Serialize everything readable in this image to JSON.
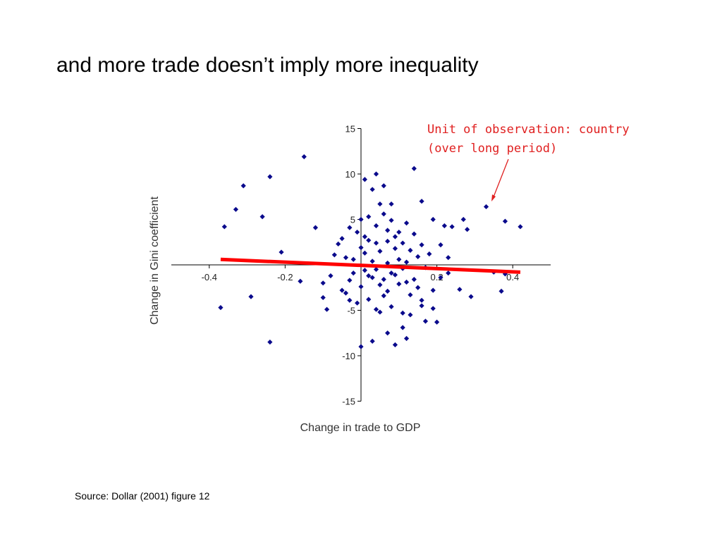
{
  "slide": {
    "title": "and more trade doesn’t imply more inequality",
    "annotation_line1": "Unit of observation: country",
    "annotation_line2": "(over long period)",
    "source": "Source: Dollar (2001) figure 12"
  },
  "colors": {
    "points": "#0a0a8c",
    "fit_line": "#ff0000",
    "annotation": "#e02020",
    "axis": "#000000"
  },
  "chart_data": {
    "type": "scatter",
    "title": "",
    "xlabel": "Change in trade to GDP",
    "ylabel": "Change in Gini coefficient",
    "xlim": [
      -0.5,
      0.5
    ],
    "ylim": [
      -15,
      15
    ],
    "x_ticks": [
      -0.4,
      -0.2,
      0.2,
      0.4
    ],
    "y_ticks": [
      15,
      10,
      5,
      -5,
      -10,
      -15
    ],
    "x_tick_labels": [
      "-0.4",
      "-0.2",
      "0.2",
      "0.4"
    ],
    "y_tick_labels": [
      "15",
      "10",
      "5",
      "-5",
      "-10",
      "-15"
    ],
    "grid": false,
    "legend": "none",
    "fit_line": {
      "x": [
        -0.37,
        0.42
      ],
      "y": [
        0.6,
        -0.8
      ]
    },
    "points": [
      {
        "x": -0.15,
        "y": 11.9
      },
      {
        "x": -0.24,
        "y": 9.7
      },
      {
        "x": -0.31,
        "y": 8.7
      },
      {
        "x": -0.33,
        "y": 6.1
      },
      {
        "x": -0.36,
        "y": 4.2
      },
      {
        "x": -0.26,
        "y": 5.3
      },
      {
        "x": -0.21,
        "y": 1.4
      },
      {
        "x": -0.12,
        "y": 4.1
      },
      {
        "x": -0.37,
        "y": -4.7
      },
      {
        "x": -0.29,
        "y": -3.5
      },
      {
        "x": -0.24,
        "y": -8.5
      },
      {
        "x": -0.16,
        "y": -1.8
      },
      {
        "x": -0.1,
        "y": -2.0
      },
      {
        "x": -0.1,
        "y": -3.6
      },
      {
        "x": -0.09,
        "y": -4.9
      },
      {
        "x": -0.08,
        "y": -1.2
      },
      {
        "x": -0.07,
        "y": 1.1
      },
      {
        "x": 0.14,
        "y": 10.6
      },
      {
        "x": 0.04,
        "y": 10.0
      },
      {
        "x": 0.01,
        "y": 9.4
      },
      {
        "x": 0.03,
        "y": 8.3
      },
      {
        "x": 0.06,
        "y": 8.7
      },
      {
        "x": 0.05,
        "y": 6.7
      },
      {
        "x": 0.08,
        "y": 6.7
      },
      {
        "x": 0.16,
        "y": 7.0
      },
      {
        "x": 0.33,
        "y": 6.4
      },
      {
        "x": 0.38,
        "y": 4.8
      },
      {
        "x": 0.42,
        "y": 4.2
      },
      {
        "x": 0.27,
        "y": 5.0
      },
      {
        "x": 0.22,
        "y": 4.3
      },
      {
        "x": 0.24,
        "y": 4.2
      },
      {
        "x": 0.19,
        "y": 5.0
      },
      {
        "x": 0.28,
        "y": 3.9
      },
      {
        "x": 0.35,
        "y": -0.8
      },
      {
        "x": 0.38,
        "y": -1.0
      },
      {
        "x": 0.37,
        "y": -2.9
      },
      {
        "x": 0.29,
        "y": -3.5
      },
      {
        "x": 0.26,
        "y": -2.7
      },
      {
        "x": 0.21,
        "y": -1.4
      },
      {
        "x": 0.2,
        "y": -6.3
      },
      {
        "x": 0.17,
        "y": -6.2
      },
      {
        "x": 0.16,
        "y": -4.5
      },
      {
        "x": 0.19,
        "y": -2.8
      },
      {
        "x": 0.21,
        "y": 2.2
      },
      {
        "x": 0.23,
        "y": 0.8
      },
      {
        "x": 0.12,
        "y": -8.1
      },
      {
        "x": 0.09,
        "y": -8.8
      },
      {
        "x": 0.07,
        "y": -7.5
      },
      {
        "x": 0.0,
        "y": -9.0
      },
      {
        "x": 0.03,
        "y": -8.4
      },
      {
        "x": 0.05,
        "y": -5.2
      },
      {
        "x": 0.11,
        "y": -6.9
      },
      {
        "x": 0.13,
        "y": -5.5
      },
      {
        "x": -0.02,
        "y": 0.6
      },
      {
        "x": 0.0,
        "y": 1.9
      },
      {
        "x": 0.02,
        "y": 2.7
      },
      {
        "x": -0.01,
        "y": 3.6
      },
      {
        "x": 0.04,
        "y": 4.3
      },
      {
        "x": 0.07,
        "y": 3.8
      },
      {
        "x": 0.09,
        "y": 3.1
      },
      {
        "x": 0.11,
        "y": 2.4
      },
      {
        "x": 0.13,
        "y": 1.6
      },
      {
        "x": 0.15,
        "y": 0.9
      },
      {
        "x": 0.01,
        "y": -0.6
      },
      {
        "x": 0.03,
        "y": -1.4
      },
      {
        "x": 0.05,
        "y": -2.2
      },
      {
        "x": 0.07,
        "y": -2.9
      },
      {
        "x": 0.09,
        "y": -1.1
      },
      {
        "x": 0.11,
        "y": -0.4
      },
      {
        "x": 0.13,
        "y": -3.3
      },
      {
        "x": 0.15,
        "y": -2.5
      },
      {
        "x": -0.03,
        "y": -1.7
      },
      {
        "x": -0.04,
        "y": -3.1
      },
      {
        "x": -0.01,
        "y": -4.2
      },
      {
        "x": 0.02,
        "y": -3.8
      },
      {
        "x": 0.04,
        "y": -4.9
      },
      {
        "x": 0.06,
        "y": -3.4
      },
      {
        "x": 0.08,
        "y": -4.6
      },
      {
        "x": 0.1,
        "y": -2.1
      },
      {
        "x": 0.12,
        "y": -1.9
      },
      {
        "x": 0.17,
        "y": -0.3
      },
      {
        "x": -0.05,
        "y": 2.9
      },
      {
        "x": -0.03,
        "y": 4.1
      },
      {
        "x": 0.0,
        "y": 5.0
      },
      {
        "x": 0.02,
        "y": 5.3
      },
      {
        "x": 0.06,
        "y": 5.6
      },
      {
        "x": 0.08,
        "y": 4.9
      },
      {
        "x": 0.1,
        "y": 3.6
      },
      {
        "x": 0.12,
        "y": 4.6
      },
      {
        "x": 0.14,
        "y": 3.4
      },
      {
        "x": 0.16,
        "y": 2.2
      },
      {
        "x": 0.18,
        "y": 1.2
      },
      {
        "x": 0.01,
        "y": 1.3
      },
      {
        "x": 0.03,
        "y": 0.4
      },
      {
        "x": 0.05,
        "y": 1.5
      },
      {
        "x": 0.07,
        "y": 0.2
      },
      {
        "x": 0.09,
        "y": 1.8
      },
      {
        "x": -0.02,
        "y": -0.9
      },
      {
        "x": 0.0,
        "y": -2.4
      },
      {
        "x": 0.02,
        "y": -1.2
      },
      {
        "x": 0.04,
        "y": -0.5
      },
      {
        "x": 0.06,
        "y": -1.6
      },
      {
        "x": 0.1,
        "y": 0.6
      },
      {
        "x": 0.14,
        "y": -1.6
      },
      {
        "x": 0.16,
        "y": -3.9
      },
      {
        "x": 0.19,
        "y": -4.8
      },
      {
        "x": 0.23,
        "y": -0.9
      },
      {
        "x": -0.04,
        "y": 0.8
      },
      {
        "x": -0.03,
        "y": -3.9
      },
      {
        "x": -0.05,
        "y": -2.8
      },
      {
        "x": -0.06,
        "y": 2.3
      },
      {
        "x": 0.01,
        "y": 3.1
      },
      {
        "x": 0.04,
        "y": 2.4
      },
      {
        "x": 0.11,
        "y": -5.3
      },
      {
        "x": 0.08,
        "y": -0.9
      },
      {
        "x": 0.12,
        "y": 0.3
      },
      {
        "x": 0.07,
        "y": 2.6
      }
    ]
  }
}
